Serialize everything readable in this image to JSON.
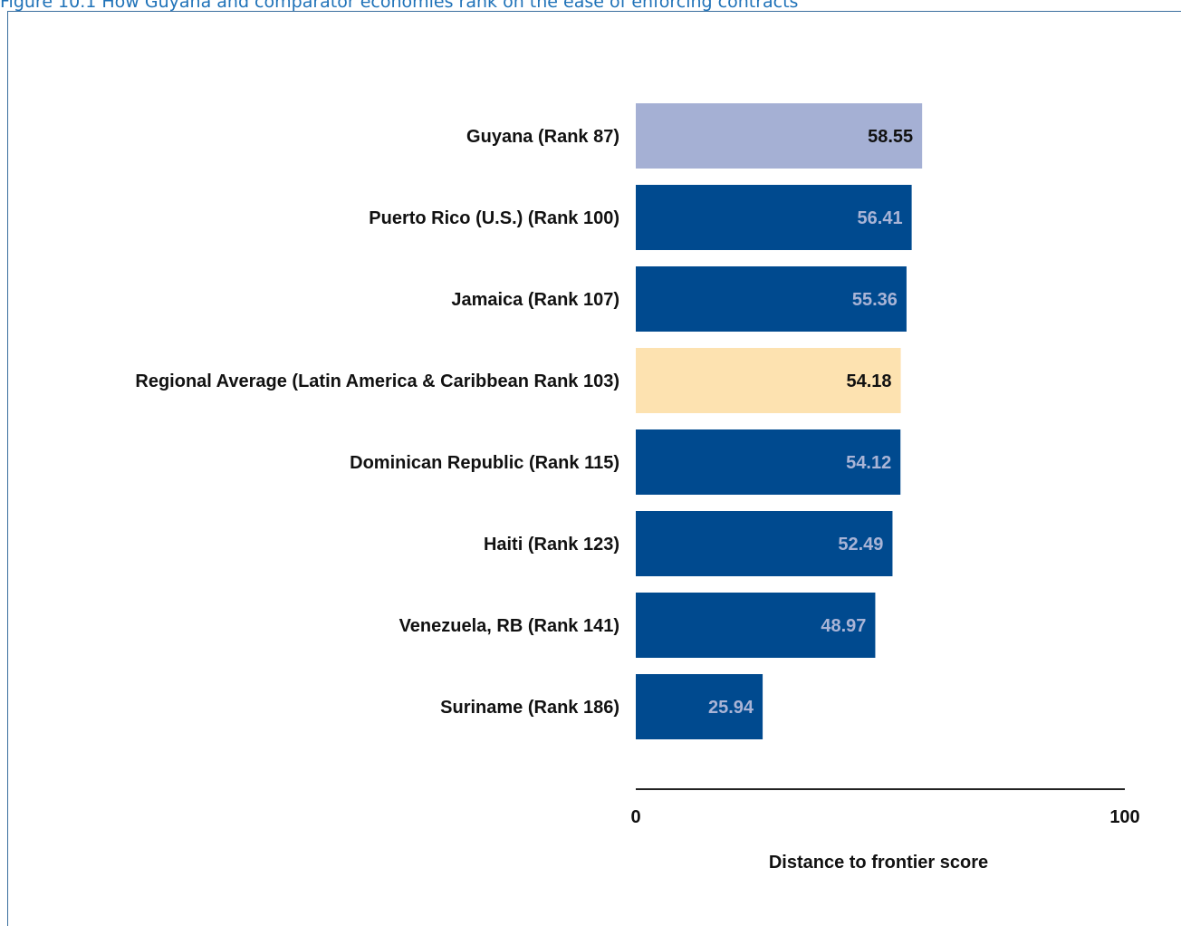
{
  "caption": "Figure 10.1 How Guyana and comparator economies rank on the ease of enforcing contracts",
  "chart_data": {
    "type": "bar",
    "orientation": "horizontal",
    "categories": [
      "Guyana (Rank 87)",
      "Puerto Rico (U.S.) (Rank 100)",
      "Jamaica (Rank 107)",
      "Regional Average (Latin America & Caribbean Rank 103)",
      "Dominican Republic (Rank 115)",
      "Haiti (Rank 123)",
      "Venezuela, RB (Rank 141)",
      "Suriname (Rank 186)"
    ],
    "values": [
      58.55,
      56.41,
      55.36,
      54.18,
      54.12,
      52.49,
      48.97,
      25.94
    ],
    "value_labels": [
      "58.55",
      "56.41",
      "55.36",
      "54.18",
      "54.12",
      "52.49",
      "48.97",
      "25.94"
    ],
    "bar_colors": [
      "#a5b0d4",
      "#004a8f",
      "#004a8f",
      "#fde2b0",
      "#004a8f",
      "#004a8f",
      "#004a8f",
      "#004a8f"
    ],
    "value_label_colors": [
      "#111111",
      "#a9b4d6",
      "#a9b4d6",
      "#111111",
      "#a9b4d6",
      "#a9b4d6",
      "#a9b4d6",
      "#a9b4d6"
    ],
    "xlim": [
      0,
      100
    ],
    "xticks": [
      "0",
      "100"
    ],
    "xlabel": "Distance to frontier score",
    "title": "",
    "grid": false,
    "legend": "none"
  }
}
